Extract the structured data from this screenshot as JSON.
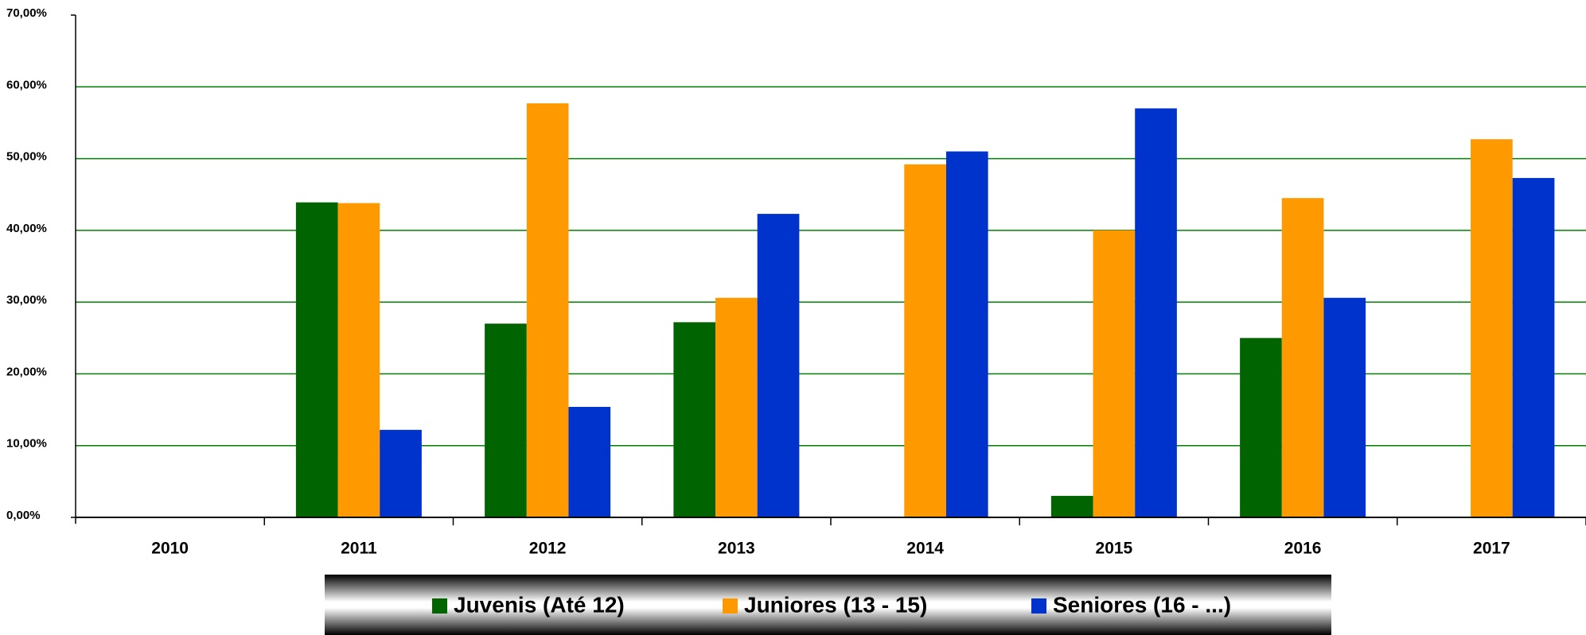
{
  "chart_data": {
    "type": "bar",
    "categories": [
      "2010",
      "2011",
      "2012",
      "2013",
      "2014",
      "2015",
      "2016",
      "2017"
    ],
    "series": [
      {
        "name": "Juvenis (Até 12)",
        "color": "#006400",
        "values": [
          null,
          43.9,
          27.0,
          27.2,
          null,
          3.0,
          25.0,
          null
        ]
      },
      {
        "name": "Juniores (13 - 15)",
        "color": "#ff9900",
        "values": [
          null,
          43.8,
          57.7,
          30.6,
          49.2,
          40.0,
          44.5,
          52.7
        ]
      },
      {
        "name": "Seniores (16 - ...)",
        "color": "#0033cc",
        "values": [
          null,
          12.2,
          15.4,
          42.3,
          51.0,
          57.0,
          30.6,
          47.3
        ]
      }
    ],
    "ylim": [
      0,
      70
    ],
    "yticks": [
      {
        "value": 0,
        "label": "0,00%"
      },
      {
        "value": 10,
        "label": "10,00%"
      },
      {
        "value": 20,
        "label": "20,00%"
      },
      {
        "value": 30,
        "label": "30,00%"
      },
      {
        "value": 40,
        "label": "40,00%"
      },
      {
        "value": 50,
        "label": "50,00%"
      },
      {
        "value": 60,
        "label": "60,00%"
      },
      {
        "value": 70,
        "label": "70,00%"
      }
    ],
    "grid": true,
    "grid_color": "#008000",
    "legend": "bottom"
  }
}
